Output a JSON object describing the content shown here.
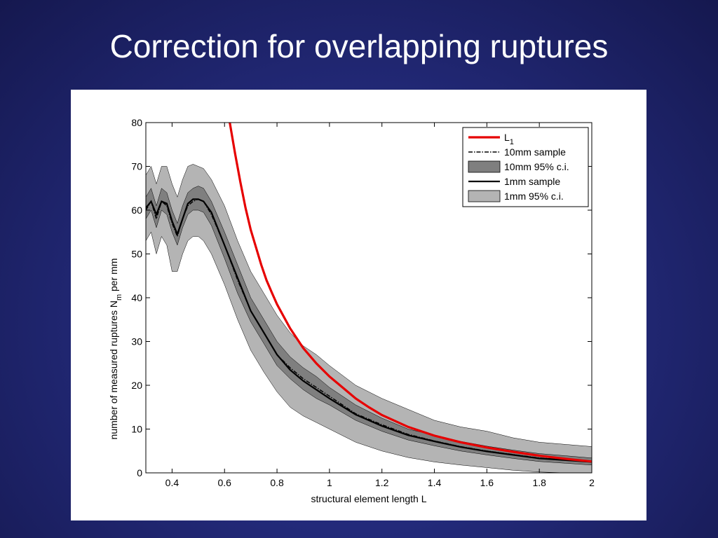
{
  "slide": {
    "title": "Correction for overlapping ruptures"
  },
  "chart_data": {
    "type": "line",
    "xlabel": "structural element length L",
    "ylabel_prefix": "number of measured ruptures N",
    "ylabel_subscript": "m",
    "ylabel_suffix": " per mm",
    "xlim": [
      0.3,
      2.0
    ],
    "ylim": [
      0,
      80
    ],
    "xticks": [
      0.4,
      0.6,
      0.8,
      1,
      1.2,
      1.4,
      1.6,
      1.8,
      2
    ],
    "xtick_labels": [
      "0.4",
      "0.6",
      "0.8",
      "1",
      "1.2",
      "1.4",
      "1.6",
      "1.8",
      "2"
    ],
    "yticks": [
      0,
      10,
      20,
      30,
      40,
      50,
      60,
      70,
      80
    ],
    "ytick_labels": [
      "0",
      "10",
      "20",
      "30",
      "40",
      "50",
      "60",
      "70",
      "80"
    ],
    "grid": false,
    "legend_position": "top-right",
    "legend": [
      {
        "label": "L",
        "subscript": "1",
        "style": "red-line"
      },
      {
        "label": "10mm sample",
        "style": "dashdot-line"
      },
      {
        "label": "10mm 95% c.i.",
        "style": "dark-patch"
      },
      {
        "label": "1mm sample",
        "style": "solid-line"
      },
      {
        "label": "1mm 95% c.i.",
        "style": "light-patch"
      }
    ],
    "colors": {
      "L1": "#e60000",
      "ci_10mm": "#7f7f7f",
      "ci_1mm": "#b4b4b4",
      "sample": "#000000"
    },
    "x": [
      0.3,
      0.32,
      0.34,
      0.36,
      0.38,
      0.4,
      0.42,
      0.44,
      0.46,
      0.48,
      0.5,
      0.52,
      0.55,
      0.6,
      0.65,
      0.7,
      0.75,
      0.8,
      0.85,
      0.9,
      0.95,
      1.0,
      1.1,
      1.2,
      1.3,
      1.4,
      1.5,
      1.6,
      1.7,
      1.8,
      1.9,
      2.0
    ],
    "series": [
      {
        "name": "10mm sample",
        "values": [
          60,
          62,
          58,
          62,
          61,
          57,
          54,
          58,
          61,
          62,
          62.5,
          62,
          59,
          52,
          44,
          37,
          32,
          27,
          24,
          21.5,
          19.5,
          17.5,
          13.5,
          11,
          8.8,
          7.3,
          6,
          5,
          4.2,
          3.4,
          3.0,
          2.6
        ]
      },
      {
        "name": "1mm sample",
        "values": [
          60.5,
          62,
          59,
          62,
          61.5,
          57.5,
          54.5,
          58,
          61.5,
          62.5,
          62.5,
          62,
          59.5,
          52,
          44.5,
          37,
          32,
          27,
          23.5,
          21,
          19,
          17,
          13.3,
          10.7,
          8.6,
          7.2,
          5.9,
          4.9,
          4.1,
          3.3,
          2.9,
          2.5
        ]
      },
      {
        "name": "10mm 95% c.i.",
        "lower": [
          58,
          60,
          56,
          60,
          59,
          55,
          52,
          56,
          59,
          60,
          60,
          59.5,
          56.5,
          49,
          41,
          34.5,
          29.5,
          24.5,
          21.5,
          19,
          17,
          15.5,
          12,
          9.5,
          7.5,
          6.2,
          5,
          4.1,
          3.3,
          2.6,
          2.2,
          1.8
        ],
        "upper": [
          63,
          65,
          61,
          65,
          64,
          60,
          57,
          61,
          64,
          65,
          65.5,
          65,
          62,
          55,
          47.5,
          40,
          35,
          30,
          26.5,
          24,
          22,
          19.5,
          15.5,
          12.5,
          10,
          8.6,
          7.2,
          6.1,
          5.2,
          4.4,
          3.9,
          3.4
        ]
      },
      {
        "name": "1mm 95% c.i.",
        "lower": [
          53,
          55,
          50,
          54,
          52,
          46,
          46,
          50,
          53,
          54,
          54,
          53,
          50,
          43,
          35,
          28,
          23,
          18.5,
          15,
          13,
          11.5,
          10,
          7,
          5,
          3.5,
          2.5,
          1.8,
          1.2,
          0.6,
          0.2,
          0,
          0
        ],
        "upper": [
          68,
          70,
          66,
          70,
          70,
          66,
          63,
          67,
          70,
          70.5,
          70,
          69.5,
          67,
          61,
          53,
          46,
          41,
          36,
          32,
          29,
          27,
          24.5,
          20,
          17,
          14.5,
          12,
          10.5,
          9.5,
          8,
          7,
          6.5,
          6
        ]
      },
      {
        "name": "L1",
        "x": [
          0.62,
          0.64,
          0.66,
          0.68,
          0.7,
          0.72,
          0.74,
          0.76,
          0.78,
          0.8,
          0.85,
          0.9,
          0.95,
          1.0,
          1.05,
          1.1,
          1.15,
          1.2,
          1.3,
          1.4,
          1.5,
          1.6,
          1.7,
          1.8,
          1.9,
          2.0
        ],
        "values": [
          80,
          73,
          66.5,
          60.5,
          55.5,
          51.5,
          47.5,
          44,
          41.2,
          38.5,
          33,
          28.5,
          25,
          22,
          19.5,
          17,
          15,
          13.2,
          10.5,
          8.5,
          7,
          5.8,
          4.8,
          3.9,
          3.2,
          2.6
        ]
      }
    ]
  }
}
